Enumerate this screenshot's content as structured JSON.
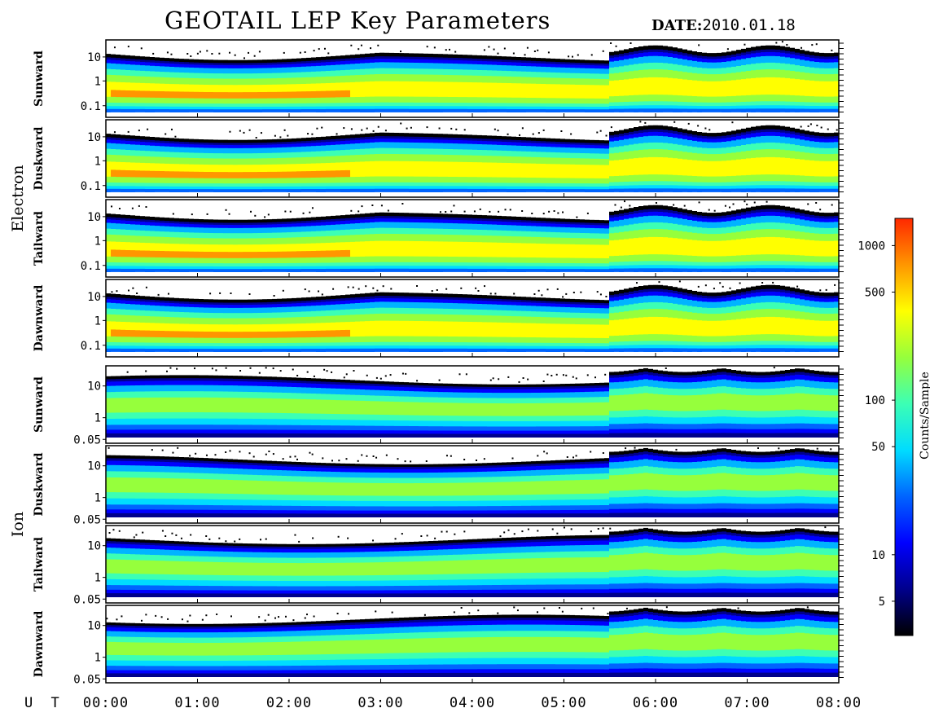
{
  "header": {
    "title": "GEOTAIL LEP Key Parameters",
    "date_label": "DATE:",
    "date_value": "2010.01.18"
  },
  "chart_data": {
    "type": "heatmap",
    "x_label": "U T",
    "x_ticks": [
      "00:00",
      "01:00",
      "02:00",
      "03:00",
      "04:00",
      "05:00",
      "06:00",
      "07:00",
      "08:00"
    ],
    "x_range": [
      "00:00",
      "08:00"
    ],
    "colorbar": {
      "label": "Counts/Sample",
      "scale": "log",
      "range": [
        3,
        1500
      ],
      "ticks": [
        "1000",
        "500",
        "100",
        "50",
        "10",
        "5"
      ],
      "tick_values": [
        1000,
        500,
        100,
        50,
        10,
        5
      ],
      "colormap": [
        "#000000",
        "#00008c",
        "#0000ff",
        "#0064ff",
        "#00dcff",
        "#3cffb4",
        "#96ff3c",
        "#ffff00",
        "#ff9600",
        "#ff2800"
      ]
    },
    "groups": [
      {
        "name": "Electron",
        "y_scale": "log",
        "y_ticks": [
          "10",
          "1",
          "0.1"
        ],
        "y_tick_values": [
          10,
          1,
          0.1
        ],
        "panels": [
          {
            "name": "Sunward"
          },
          {
            "name": "Duskward"
          },
          {
            "name": "Tailward"
          },
          {
            "name": "Dawnward"
          }
        ]
      },
      {
        "name": "Ion",
        "y_scale": "log",
        "y_ticks": [
          "10",
          "1",
          "0.05"
        ],
        "y_tick_values": [
          10,
          1,
          0.05
        ],
        "panels": [
          {
            "name": "Sunward"
          },
          {
            "name": "Duskward"
          },
          {
            "name": "Tailward"
          },
          {
            "name": "Dawnward"
          }
        ]
      }
    ]
  }
}
